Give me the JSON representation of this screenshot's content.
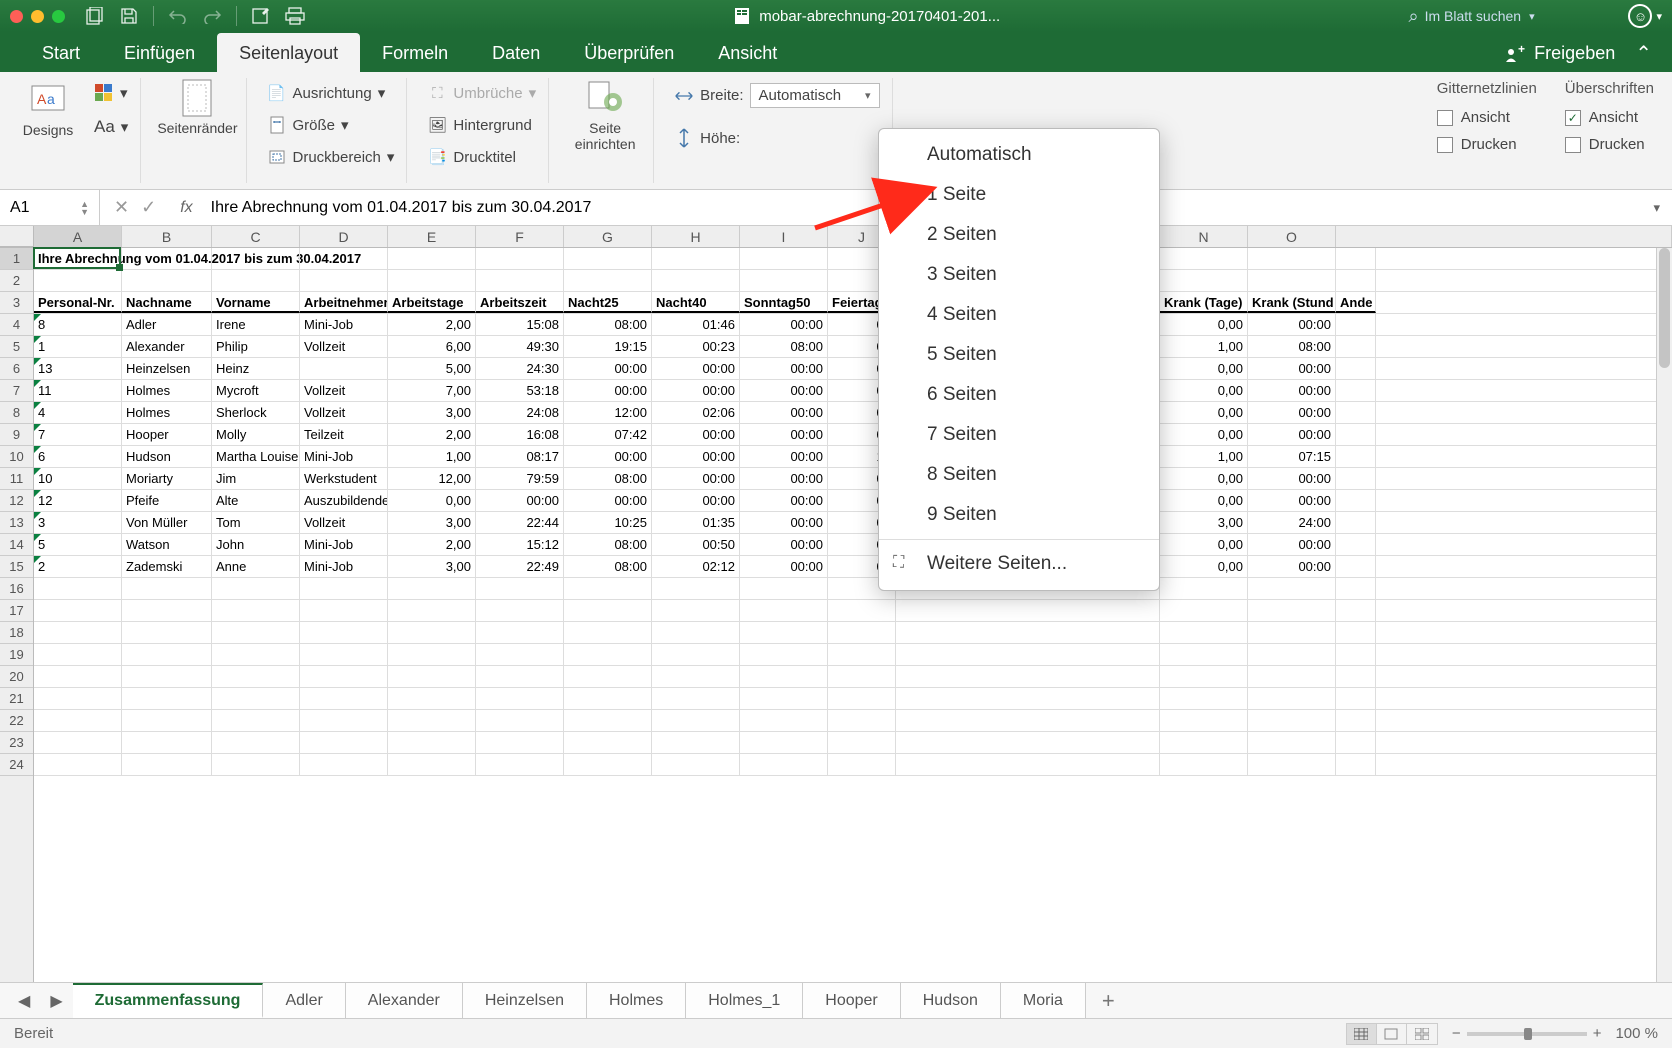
{
  "window": {
    "title": "mobar-abrechnung-20170401-201..."
  },
  "search": {
    "placeholder": "Im Blatt suchen"
  },
  "tabs": {
    "items": [
      "Start",
      "Einfügen",
      "Seitenlayout",
      "Formeln",
      "Daten",
      "Überprüfen",
      "Ansicht"
    ],
    "active": 2,
    "share": "Freigeben"
  },
  "ribbon": {
    "designs": "Designs",
    "fonts": "Aa",
    "margins": "Seitenränder",
    "orientation": "Ausrichtung",
    "size": "Größe",
    "print_area": "Druckbereich",
    "breaks": "Umbrüche",
    "background": "Hintergrund",
    "print_titles": "Drucktitel",
    "page_setup": "Seite einrichten",
    "width_label": "Breite:",
    "height_label": "Höhe:",
    "width_value": "Automatisch",
    "gridlines_label": "Gitternetzlinien",
    "headings_label": "Überschriften",
    "view_label": "Ansicht",
    "print_label": "Drucken"
  },
  "dropdown": {
    "items": [
      "Automatisch",
      "1 Seite",
      "2 Seiten",
      "3 Seiten",
      "4 Seiten",
      "5 Seiten",
      "6 Seiten",
      "7 Seiten",
      "8 Seiten",
      "9 Seiten"
    ],
    "more": "Weitere Seiten..."
  },
  "formula_bar": {
    "cell_ref": "A1",
    "formula": "Ihre Abrechnung vom 01.04.2017 bis zum 30.04.2017"
  },
  "columns": {
    "letters": [
      "A",
      "B",
      "C",
      "D",
      "E",
      "F",
      "G",
      "H",
      "I",
      "J",
      "N",
      "O"
    ],
    "widths": [
      88,
      90,
      88,
      88,
      88,
      88,
      88,
      88,
      88,
      68,
      88,
      88,
      40
    ],
    "headers": [
      "Personal-Nr.",
      "Nachname",
      "Vorname",
      "Arbeitnehmer",
      "Arbeitstage",
      "Arbeitszeit",
      "Nacht25",
      "Nacht40",
      "Sonntag50",
      "Feiertag",
      "Krank (Tage)",
      "Krank (Stund",
      "Ande"
    ]
  },
  "title_row": "Ihre Abrechnung vom 01.04.2017 bis zum 30.04.2017",
  "rows": [
    [
      "8",
      "Adler",
      "Irene",
      "Mini-Job",
      "2,00",
      "15:08",
      "08:00",
      "01:46",
      "00:00",
      "00",
      "0,00",
      "00:00",
      ""
    ],
    [
      "1",
      "Alexander",
      "Philip",
      "Vollzeit",
      "6,00",
      "49:30",
      "19:15",
      "00:23",
      "08:00",
      "00",
      "1,00",
      "08:00",
      ""
    ],
    [
      "13",
      "Heinzelsen",
      "Heinz",
      "",
      "5,00",
      "24:30",
      "00:00",
      "00:00",
      "00:00",
      "00",
      "0,00",
      "00:00",
      ""
    ],
    [
      "11",
      "Holmes",
      "Mycroft",
      "Vollzeit",
      "7,00",
      "53:18",
      "00:00",
      "00:00",
      "00:00",
      "00",
      "0,00",
      "00:00",
      ""
    ],
    [
      "4",
      "Holmes",
      "Sherlock",
      "Vollzeit",
      "3,00",
      "24:08",
      "12:00",
      "02:06",
      "00:00",
      "00",
      "0,00",
      "00:00",
      ""
    ],
    [
      "7",
      "Hooper",
      "Molly",
      "Teilzeit",
      "2,00",
      "16:08",
      "07:42",
      "00:00",
      "00:00",
      "00",
      "0,00",
      "00:00",
      ""
    ],
    [
      "6",
      "Hudson",
      "Martha Louise",
      "Mini-Job",
      "1,00",
      "08:17",
      "00:00",
      "00:00",
      "00:00",
      "15",
      "1,00",
      "07:15",
      ""
    ],
    [
      "10",
      "Moriarty",
      "Jim",
      "Werkstudent",
      "12,00",
      "79:59",
      "08:00",
      "00:00",
      "00:00",
      "00",
      "0,00",
      "00:00",
      ""
    ],
    [
      "12",
      "Pfeife",
      "Alte",
      "Auszubildende",
      "0,00",
      "00:00",
      "00:00",
      "00:00",
      "00:00",
      "00",
      "0,00",
      "00:00",
      ""
    ],
    [
      "3",
      "Von Müller",
      "Tom",
      "Vollzeit",
      "3,00",
      "22:44",
      "10:25",
      "01:35",
      "00:00",
      "00",
      "3,00",
      "24:00",
      ""
    ],
    [
      "5",
      "Watson",
      "John",
      "Mini-Job",
      "2,00",
      "15:12",
      "08:00",
      "00:50",
      "00:00",
      "00",
      "0,00",
      "00:00",
      ""
    ],
    [
      "2",
      "Zademski",
      "Anne",
      "Mini-Job",
      "3,00",
      "22:49",
      "08:00",
      "02:12",
      "00:00",
      "00",
      "0,00",
      "00:00",
      ""
    ]
  ],
  "gap_col_suffix": "nc",
  "sheet_tabs": {
    "items": [
      "Zusammenfassung",
      "Adler",
      "Alexander",
      "Heinzelsen",
      "Holmes",
      "Holmes_1",
      "Hooper",
      "Hudson",
      "Moria"
    ],
    "active": 0
  },
  "status": {
    "ready": "Bereit",
    "zoom": "100 %"
  },
  "colors": {
    "brand": "#1e6b35",
    "arrow": "#ff2a1a"
  }
}
